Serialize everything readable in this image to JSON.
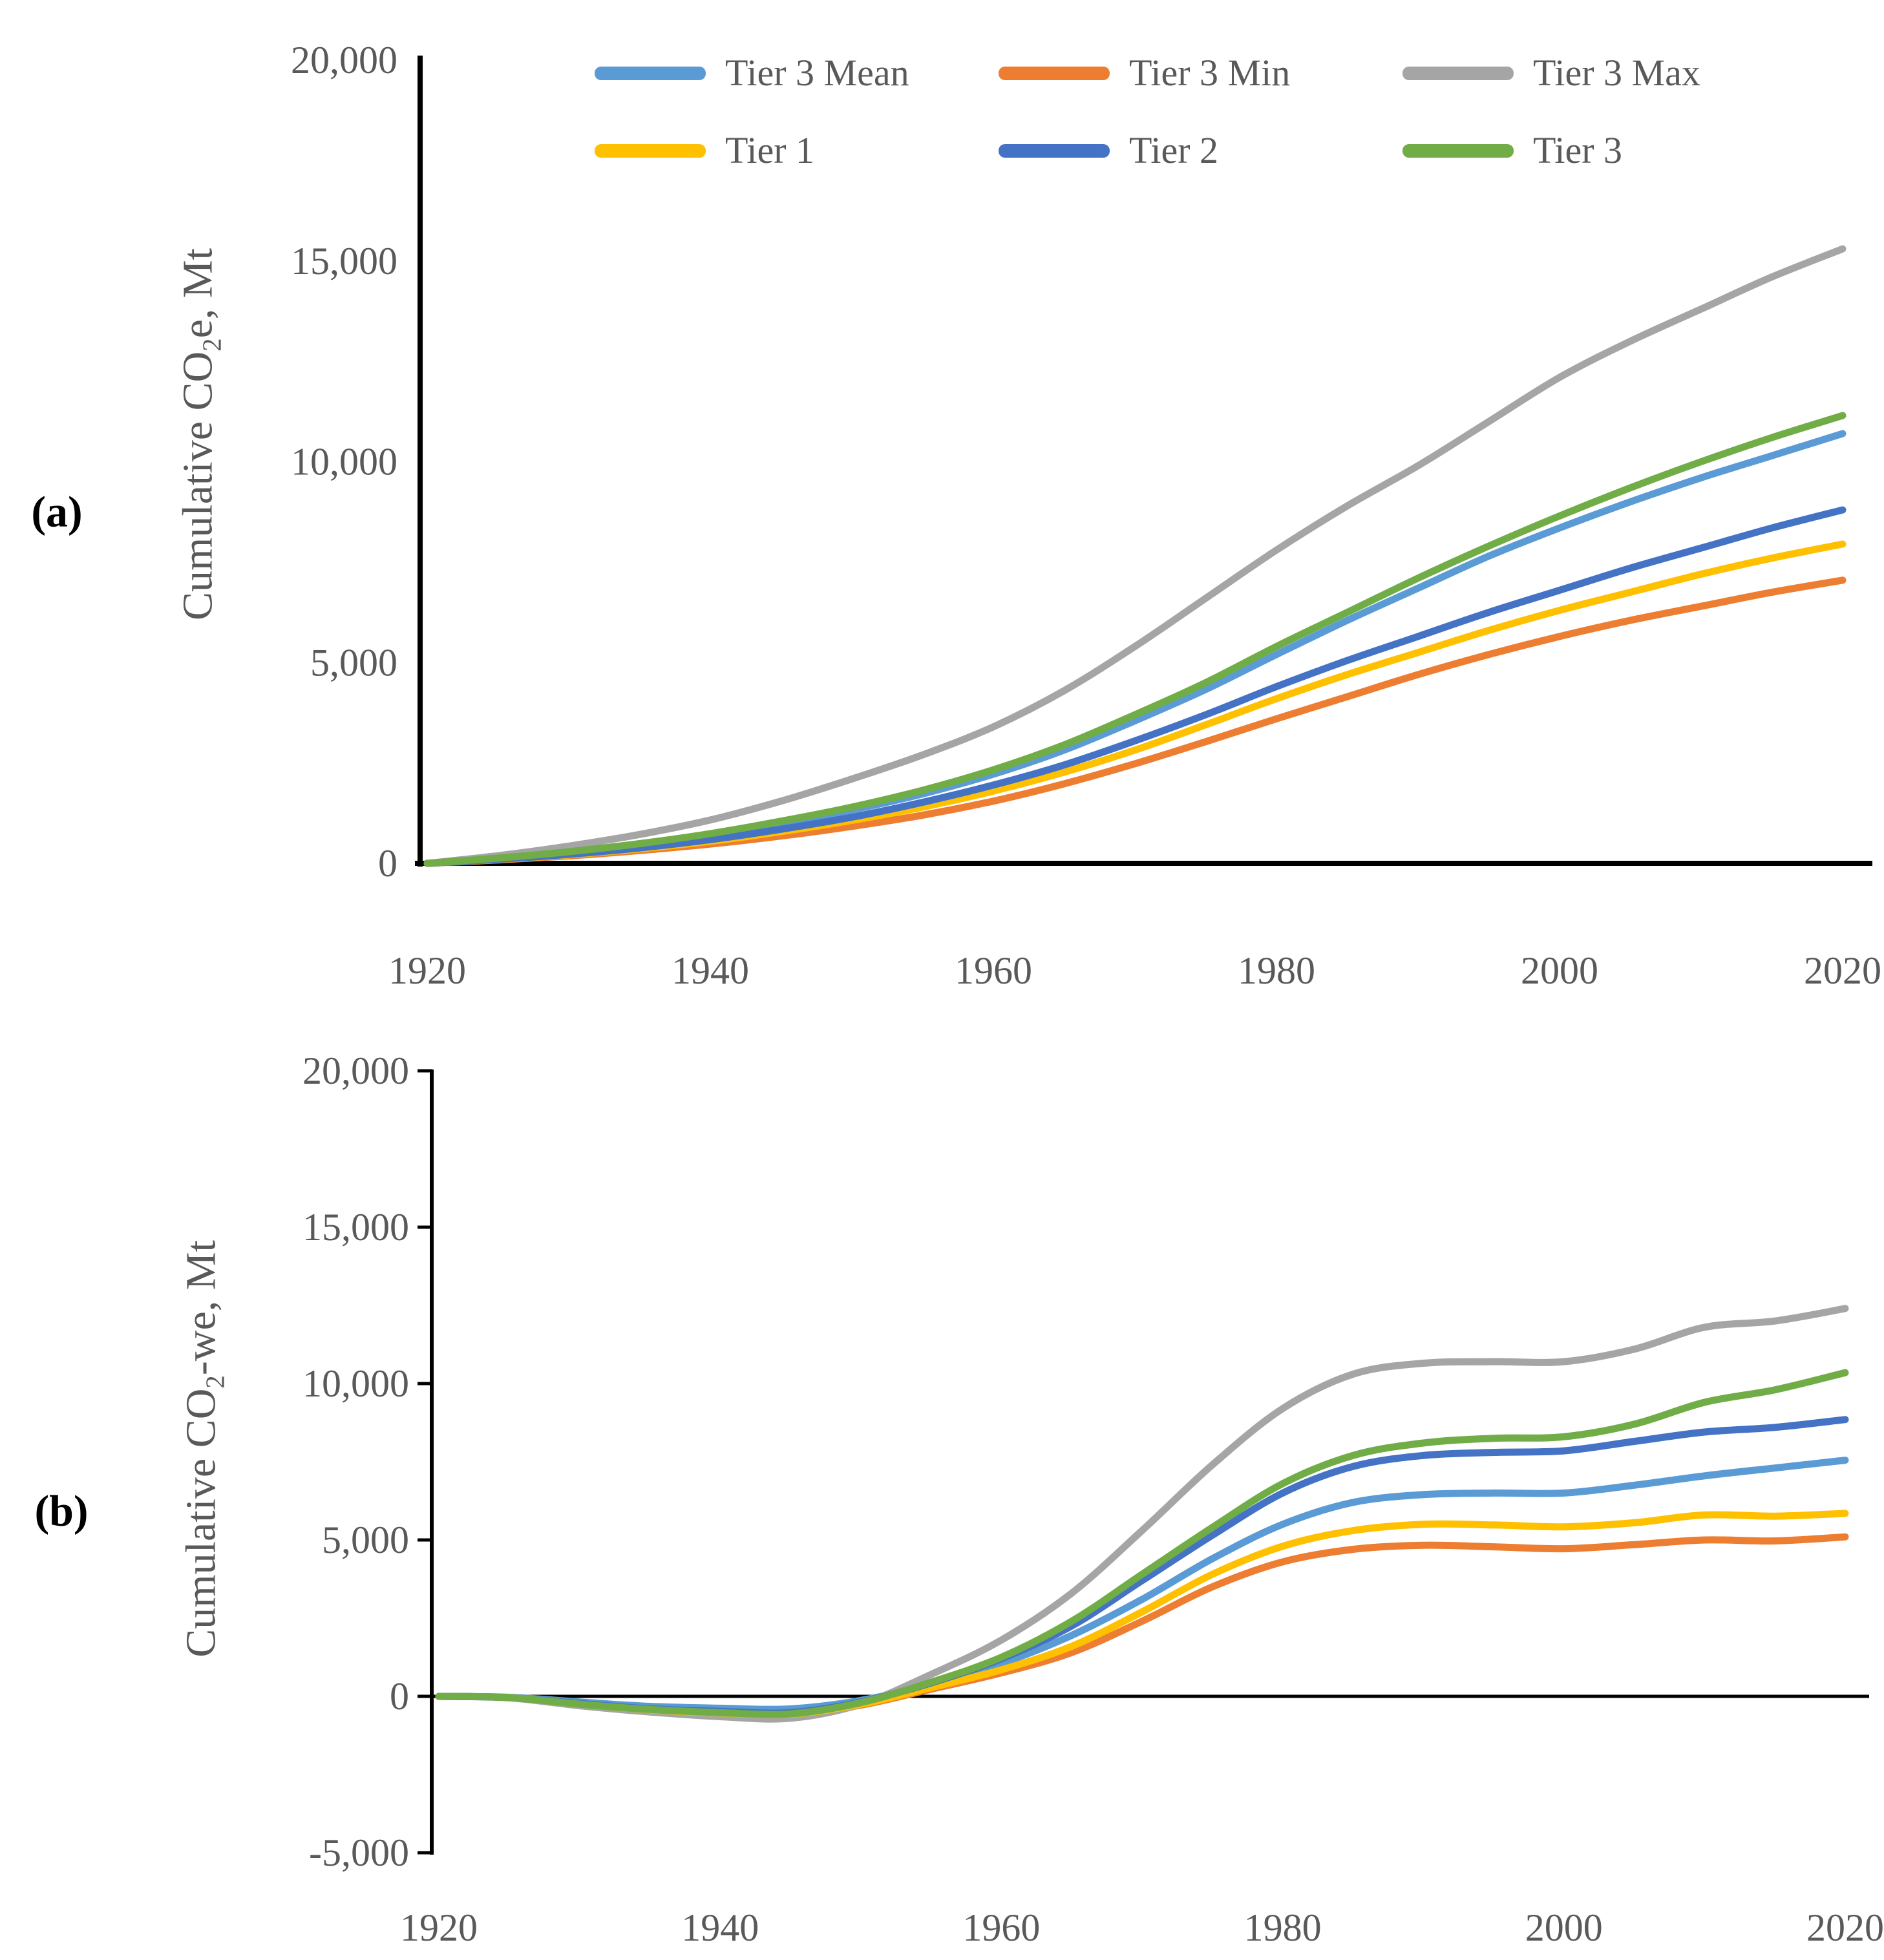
{
  "figure": {
    "panel_a_label": "(a)",
    "panel_b_label": "(b)"
  },
  "colors": {
    "tier3_mean": "#5B9BD5",
    "tier3_min": "#ED7D31",
    "tier3_max": "#A5A5A5",
    "tier1": "#FFC000",
    "tier2": "#4472C4",
    "tier3": "#70AD47",
    "axis_text": "#595959",
    "axis_line": "#000000"
  },
  "legend": {
    "items": [
      {
        "label": "Tier 3 Mean",
        "color": "#5B9BD5"
      },
      {
        "label": "Tier 3 Min",
        "color": "#ED7D31"
      },
      {
        "label": "Tier 3 Max",
        "color": "#A5A5A5"
      },
      {
        "label": "Tier 1",
        "color": "#FFC000"
      },
      {
        "label": "Tier 2",
        "color": "#4472C4"
      },
      {
        "label": "Tier 3",
        "color": "#70AD47"
      }
    ]
  },
  "chart_data": [
    {
      "panel": "a",
      "type": "line",
      "ylabel_parts": {
        "pre": "Cumulative CO",
        "sub": "2",
        "post": "e, Mt"
      },
      "xlim": [
        1920,
        2020
      ],
      "ylim": [
        0,
        20000
      ],
      "grid": false,
      "legend_position": "top",
      "x_ticks": [
        {
          "v": 1920,
          "label": "1920"
        },
        {
          "v": 1940,
          "label": "1940"
        },
        {
          "v": 1960,
          "label": "1960"
        },
        {
          "v": 1980,
          "label": "1980"
        },
        {
          "v": 2000,
          "label": "2000"
        },
        {
          "v": 2020,
          "label": "2020"
        }
      ],
      "y_ticks": [
        {
          "v": 0,
          "label": "0"
        },
        {
          "v": 5000,
          "label": "5,000"
        },
        {
          "v": 10000,
          "label": "10,000"
        },
        {
          "v": 15000,
          "label": "15,000"
        },
        {
          "v": 20000,
          "label": "20,000"
        }
      ],
      "x": [
        1920,
        1925,
        1930,
        1935,
        1940,
        1945,
        1950,
        1955,
        1960,
        1965,
        1970,
        1975,
        1980,
        1985,
        1990,
        1995,
        2000,
        2005,
        2010,
        2015,
        2020
      ],
      "series": [
        {
          "name": "Tier 3 Mean",
          "color": "#5B9BD5",
          "values": [
            0,
            120,
            270,
            460,
            700,
            990,
            1330,
            1730,
            2220,
            2820,
            3550,
            4330,
            5200,
            6050,
            6850,
            7650,
            8350,
            9000,
            9600,
            10150,
            10700
          ]
        },
        {
          "name": "Tier 3 Min",
          "color": "#ED7D31",
          "values": [
            0,
            85,
            185,
            320,
            480,
            680,
            920,
            1200,
            1550,
            1980,
            2480,
            3030,
            3600,
            4150,
            4700,
            5200,
            5650,
            6050,
            6400,
            6750,
            7050
          ]
        },
        {
          "name": "Tier 3 Max",
          "color": "#A5A5A5",
          "values": [
            0,
            190,
            430,
            720,
            1080,
            1550,
            2100,
            2700,
            3400,
            4300,
            5400,
            6600,
            7800,
            8900,
            9900,
            11000,
            12100,
            13000,
            13800,
            14600,
            15300
          ]
        },
        {
          "name": "Tier 1",
          "color": "#FFC000",
          "values": [
            0,
            95,
            210,
            360,
            550,
            790,
            1070,
            1400,
            1800,
            2270,
            2820,
            3450,
            4100,
            4700,
            5250,
            5800,
            6300,
            6750,
            7200,
            7600,
            7950
          ]
        },
        {
          "name": "Tier 2",
          "color": "#4472C4",
          "values": [
            0,
            100,
            225,
            385,
            590,
            850,
            1150,
            1520,
            1950,
            2450,
            3050,
            3700,
            4400,
            5050,
            5650,
            6250,
            6800,
            7350,
            7850,
            8350,
            8800
          ]
        },
        {
          "name": "Tier 3",
          "color": "#70AD47",
          "values": [
            0,
            130,
            290,
            490,
            740,
            1050,
            1400,
            1820,
            2330,
            2950,
            3700,
            4500,
            5400,
            6250,
            7100,
            7900,
            8650,
            9350,
            10000,
            10600,
            11150
          ]
        }
      ]
    },
    {
      "panel": "b",
      "type": "line",
      "ylabel_parts": {
        "pre": "Cumulative CO",
        "sub": "2",
        "post": "-we, Mt"
      },
      "xlim": [
        1920,
        2020
      ],
      "ylim": [
        -5000,
        20000
      ],
      "grid": false,
      "legend_position": "none",
      "x_ticks": [
        {
          "v": 1920,
          "label": "1920"
        },
        {
          "v": 1940,
          "label": "1940"
        },
        {
          "v": 1960,
          "label": "1960"
        },
        {
          "v": 1980,
          "label": "1980"
        },
        {
          "v": 2000,
          "label": "2000"
        },
        {
          "v": 2020,
          "label": "2020"
        }
      ],
      "y_ticks": [
        {
          "v": -5000,
          "label": "-5,000"
        },
        {
          "v": 0,
          "label": "0"
        },
        {
          "v": 5000,
          "label": "5,000"
        },
        {
          "v": 10000,
          "label": "10,000"
        },
        {
          "v": 15000,
          "label": "15,000"
        },
        {
          "v": 20000,
          "label": "20,000"
        }
      ],
      "x": [
        1920,
        1925,
        1930,
        1935,
        1940,
        1945,
        1950,
        1955,
        1960,
        1965,
        1970,
        1975,
        1980,
        1985,
        1990,
        1995,
        2000,
        2005,
        2010,
        2015,
        2020
      ],
      "series": [
        {
          "name": "Tier 3 Mean",
          "color": "#5B9BD5",
          "values": [
            0,
            -30,
            -180,
            -320,
            -380,
            -400,
            -130,
            380,
            1050,
            1950,
            3100,
            4400,
            5500,
            6200,
            6450,
            6500,
            6500,
            6750,
            7050,
            7300,
            7550
          ]
        },
        {
          "name": "Tier 3 Min",
          "color": "#ED7D31",
          "values": [
            0,
            -40,
            -250,
            -430,
            -540,
            -580,
            -280,
            230,
            750,
            1400,
            2400,
            3500,
            4300,
            4700,
            4830,
            4780,
            4720,
            4850,
            5000,
            4970,
            5100
          ]
        },
        {
          "name": "Tier 3 Max",
          "color": "#A5A5A5",
          "values": [
            0,
            -50,
            -300,
            -500,
            -650,
            -700,
            -250,
            700,
            1800,
            3300,
            5300,
            7400,
            9200,
            10300,
            10650,
            10700,
            10700,
            11100,
            11800,
            12000,
            12400
          ]
        },
        {
          "name": "Tier 1",
          "color": "#FFC000",
          "values": [
            0,
            -40,
            -250,
            -430,
            -530,
            -570,
            -250,
            280,
            850,
            1600,
            2700,
            3900,
            4800,
            5300,
            5500,
            5480,
            5420,
            5550,
            5800,
            5760,
            5850
          ]
        },
        {
          "name": "Tier 2",
          "color": "#4472C4",
          "values": [
            0,
            -40,
            -230,
            -400,
            -480,
            -520,
            -180,
            430,
            1200,
            2250,
            3700,
            5150,
            6500,
            7350,
            7700,
            7800,
            7850,
            8150,
            8450,
            8600,
            8850
          ]
        },
        {
          "name": "Tier 3",
          "color": "#70AD47",
          "values": [
            0,
            -40,
            -250,
            -420,
            -520,
            -560,
            -200,
            450,
            1250,
            2400,
            3900,
            5400,
            6800,
            7700,
            8100,
            8250,
            8300,
            8700,
            9400,
            9800,
            10350
          ]
        }
      ]
    }
  ]
}
